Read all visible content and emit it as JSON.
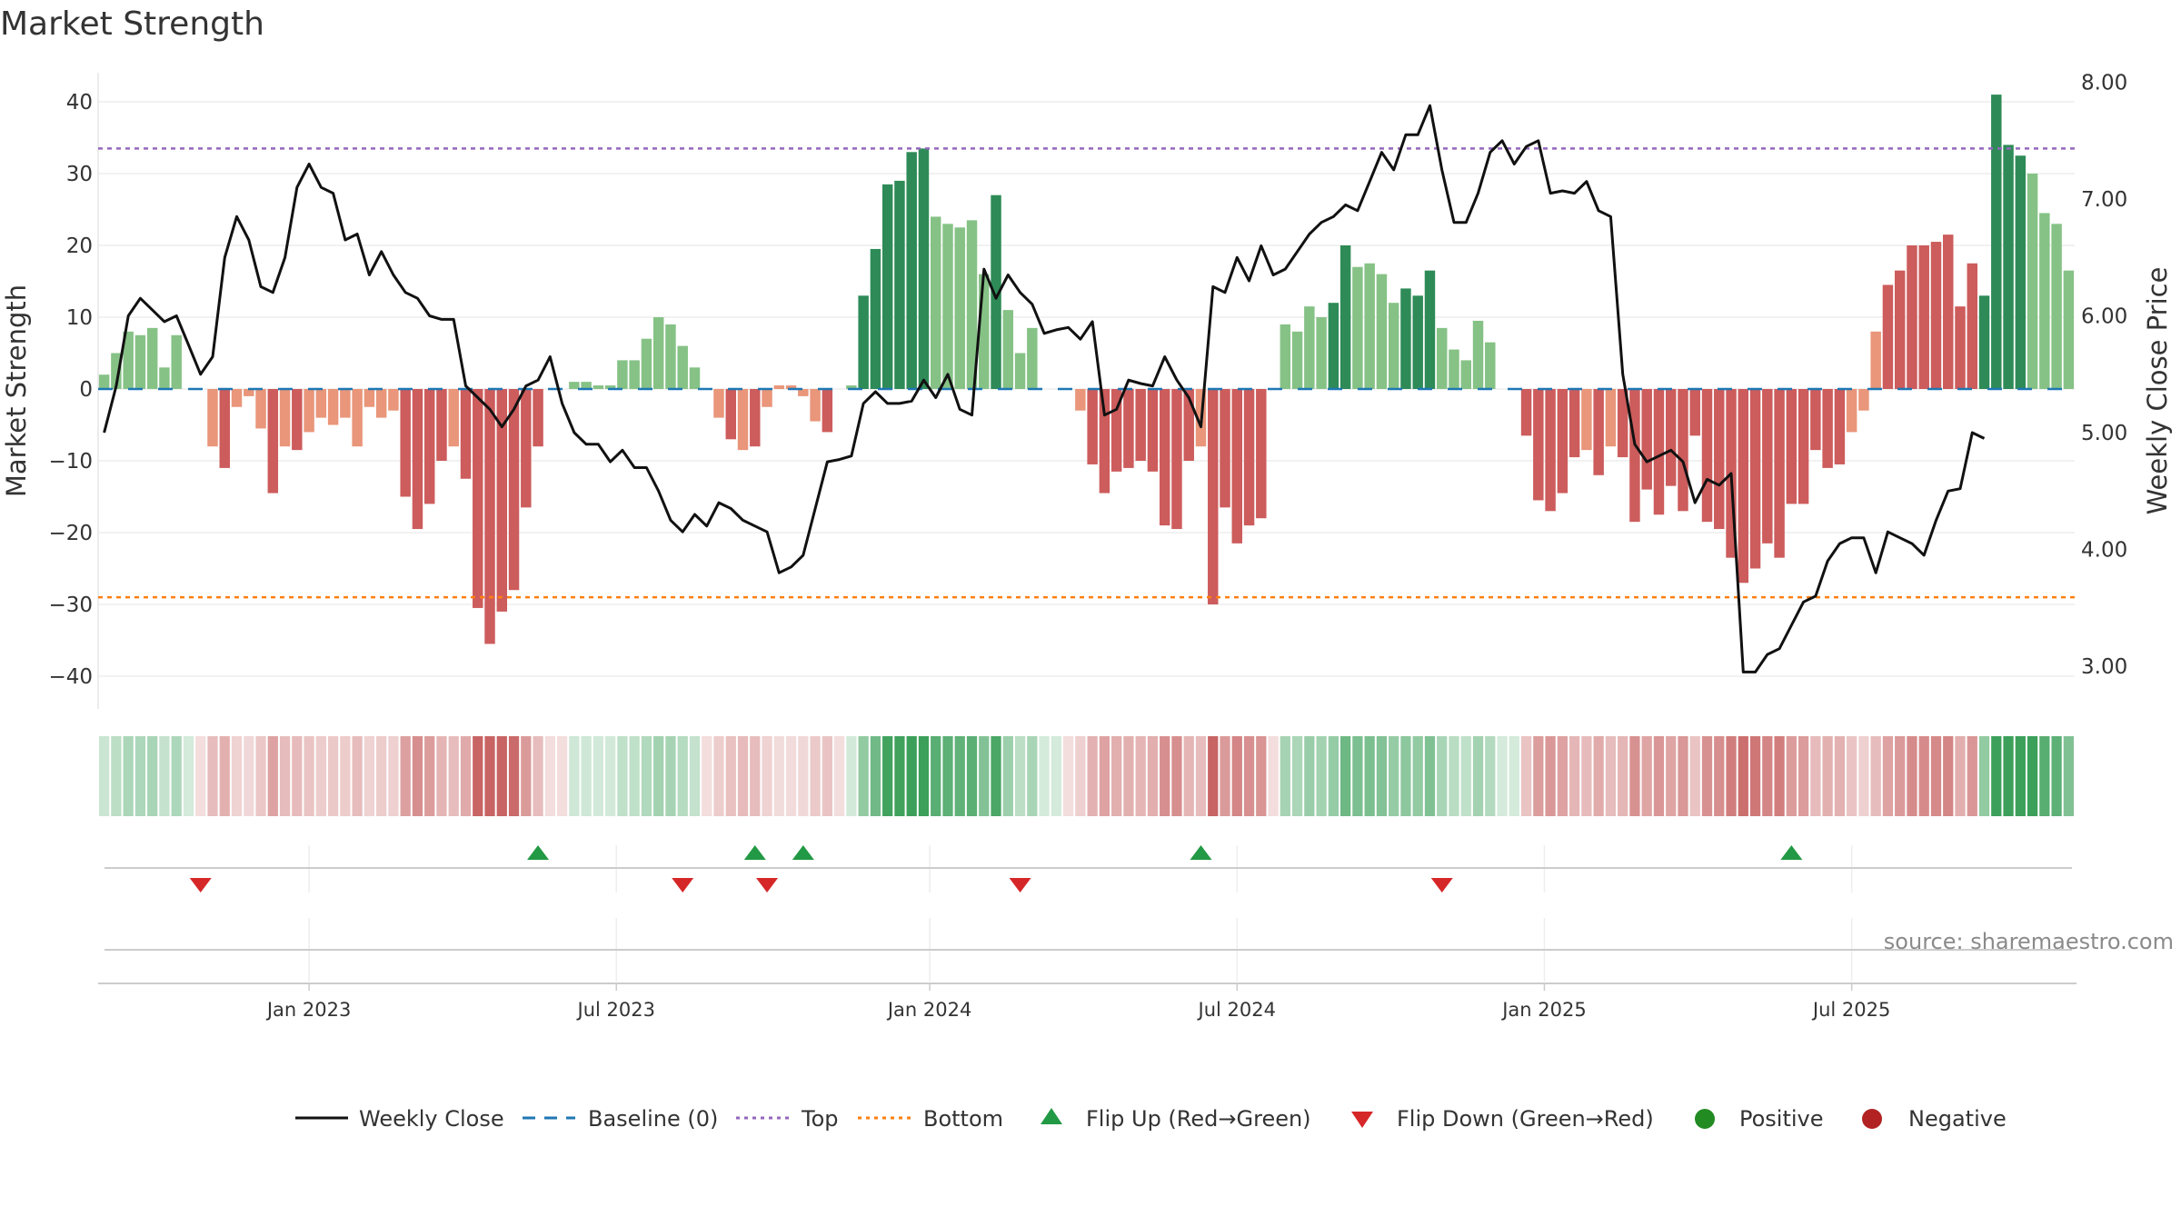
{
  "chart_data": {
    "type": "bar+line",
    "title": "Market Strength",
    "ylabel_left": "Market Strength",
    "ylabel_right": "Weekly Close Price",
    "ylim_left": [
      -45,
      45
    ],
    "ylim_right": [
      2.4,
      8.1
    ],
    "left_ticks": [
      40,
      30,
      20,
      10,
      0,
      -10,
      -20,
      -30,
      -40
    ],
    "left_tick_labels": [
      "40",
      "30",
      "20",
      "10",
      "0",
      "−10",
      "−20",
      "−30",
      "−40"
    ],
    "right_ticks": [
      8,
      7,
      6,
      5,
      4,
      3
    ],
    "right_tick_labels": [
      "8.00",
      "7.00",
      "6.00",
      "5.00",
      "4.00",
      "3.00"
    ],
    "x_tick_labels": [
      "Jan 2023",
      "Jul 2023",
      "Jan 2024",
      "Jul 2024",
      "Jan 2025",
      "Jul 2025"
    ],
    "x_tick_weeks": [
      17.5,
      43,
      69,
      94.5,
      120,
      145.5
    ],
    "top_level": 33.5,
    "bottom_level": -29,
    "baseline": 0,
    "strength_values": [
      2,
      5,
      8,
      7.5,
      8.5,
      3,
      7.5,
      0,
      0,
      -8,
      -11,
      -2.5,
      -1,
      -5.5,
      -14.5,
      -8,
      -8.5,
      -6,
      -4,
      -5,
      -4,
      -8,
      -2.5,
      -4,
      -3,
      -15,
      -19.5,
      -16,
      -10,
      -8,
      -12.5,
      -30.5,
      -35.5,
      -31,
      -28,
      -16.5,
      -8,
      0,
      0,
      1,
      1,
      0.5,
      0.5,
      4,
      4,
      7,
      10,
      9,
      6,
      3,
      0,
      -4,
      -7,
      -8.5,
      -8,
      -2.5,
      0.5,
      0.5,
      -1,
      -4.5,
      -6,
      0,
      0.5,
      13,
      19.5,
      28.5,
      29,
      33,
      33.5,
      24,
      23,
      22.5,
      23.5,
      16,
      27,
      11,
      5,
      8.5,
      0,
      0,
      0,
      -3,
      -10.5,
      -14.5,
      -11.5,
      -11,
      -10,
      -11.5,
      -19,
      -19.5,
      -10,
      -8,
      -30,
      -16.5,
      -21.5,
      -19,
      -18,
      0,
      9,
      8,
      11.5,
      10,
      12,
      20,
      17,
      17.5,
      16,
      12,
      14,
      13,
      16.5,
      8.5,
      5.5,
      4,
      9.5,
      6.5,
      0,
      0,
      -6.5,
      -15.5,
      -17,
      -14.5,
      -9.5,
      -8.5,
      -12,
      -8,
      -9.5,
      -18.5,
      -14,
      -17.5,
      -13.5,
      -17,
      -6.5,
      -18.5,
      -19.5,
      -23.5,
      -27,
      -25,
      -21.5,
      -23.5,
      -16,
      -16,
      -8.5,
      -11,
      -10.5,
      -6,
      -3,
      8,
      14.5,
      16.5,
      20,
      20,
      20.5,
      21.5,
      11.5,
      17.5,
      13,
      41,
      34,
      32.5,
      30,
      24.5,
      23,
      16.5
    ],
    "price_values": [
      5.0,
      5.4,
      6.0,
      6.15,
      6.05,
      5.95,
      6.0,
      5.75,
      5.5,
      5.65,
      6.5,
      6.85,
      6.65,
      6.25,
      6.2,
      6.5,
      7.1,
      7.3,
      7.1,
      7.05,
      6.65,
      6.7,
      6.35,
      6.55,
      6.35,
      6.2,
      6.15,
      6.0,
      5.97,
      5.97,
      5.4,
      5.3,
      5.2,
      5.05,
      5.2,
      5.4,
      5.45,
      5.65,
      5.25,
      5.0,
      4.9,
      4.9,
      4.75,
      4.85,
      4.7,
      4.7,
      4.5,
      4.25,
      4.15,
      4.3,
      4.2,
      4.4,
      4.35,
      4.25,
      4.2,
      4.15,
      3.8,
      3.85,
      3.95,
      4.35,
      4.75,
      4.77,
      4.8,
      5.25,
      5.35,
      5.25,
      5.25,
      5.27,
      5.45,
      5.3,
      5.5,
      5.2,
      5.15,
      6.4,
      6.15,
      6.35,
      6.2,
      6.1,
      5.85,
      5.88,
      5.9,
      5.8,
      5.95,
      5.15,
      5.2,
      5.45,
      5.42,
      5.4,
      5.65,
      5.45,
      5.3,
      5.05,
      6.25,
      6.2,
      6.5,
      6.3,
      6.6,
      6.35,
      6.4,
      6.55,
      6.7,
      6.8,
      6.85,
      6.95,
      6.9,
      7.15,
      7.4,
      7.25,
      7.55,
      7.55,
      7.8,
      7.25,
      6.8,
      6.8,
      7.05,
      7.4,
      7.5,
      7.3,
      7.45,
      7.5,
      7.05,
      7.07,
      7.05,
      7.15,
      6.9,
      6.85,
      5.5,
      4.9,
      4.75,
      4.8,
      4.85,
      4.75,
      4.4,
      4.6,
      4.55,
      4.65,
      2.95,
      2.95,
      3.1,
      3.15,
      3.35,
      3.55,
      3.6,
      3.9,
      4.05,
      4.1,
      4.1,
      3.8,
      4.15,
      4.1,
      4.05,
      3.95,
      4.25,
      4.5,
      4.52,
      5.0,
      4.95
    ],
    "green_segments": [
      [
        0,
        7
      ],
      [
        39,
        49
      ],
      [
        62,
        79
      ],
      [
        98,
        117
      ],
      [
        156,
        173
      ]
    ],
    "flip_up_weeks": [
      36,
      54,
      58,
      91,
      140
    ],
    "flip_down_weeks": [
      8,
      48,
      55,
      76,
      111
    ],
    "legend": [
      "Weekly Close",
      "Baseline (0)",
      "Top",
      "Bottom",
      "Flip Up (Red→Green)",
      "Flip Down (Green→Red)",
      "Positive",
      "Negative"
    ]
  },
  "source_text": "source: sharemaestro.com",
  "colors": {
    "green_dark": "#2e8b57",
    "green_light": "#86c286",
    "red_dark": "#cd5c5c",
    "red_light": "#e9967a",
    "price_line": "#111111",
    "baseline": "#1f77b4",
    "top_line": "#9467bd",
    "bottom_line": "#ff7f0e",
    "flip_up": "#229944",
    "flip_down": "#d62728",
    "positive": "#228b22",
    "negative": "#b22222"
  }
}
